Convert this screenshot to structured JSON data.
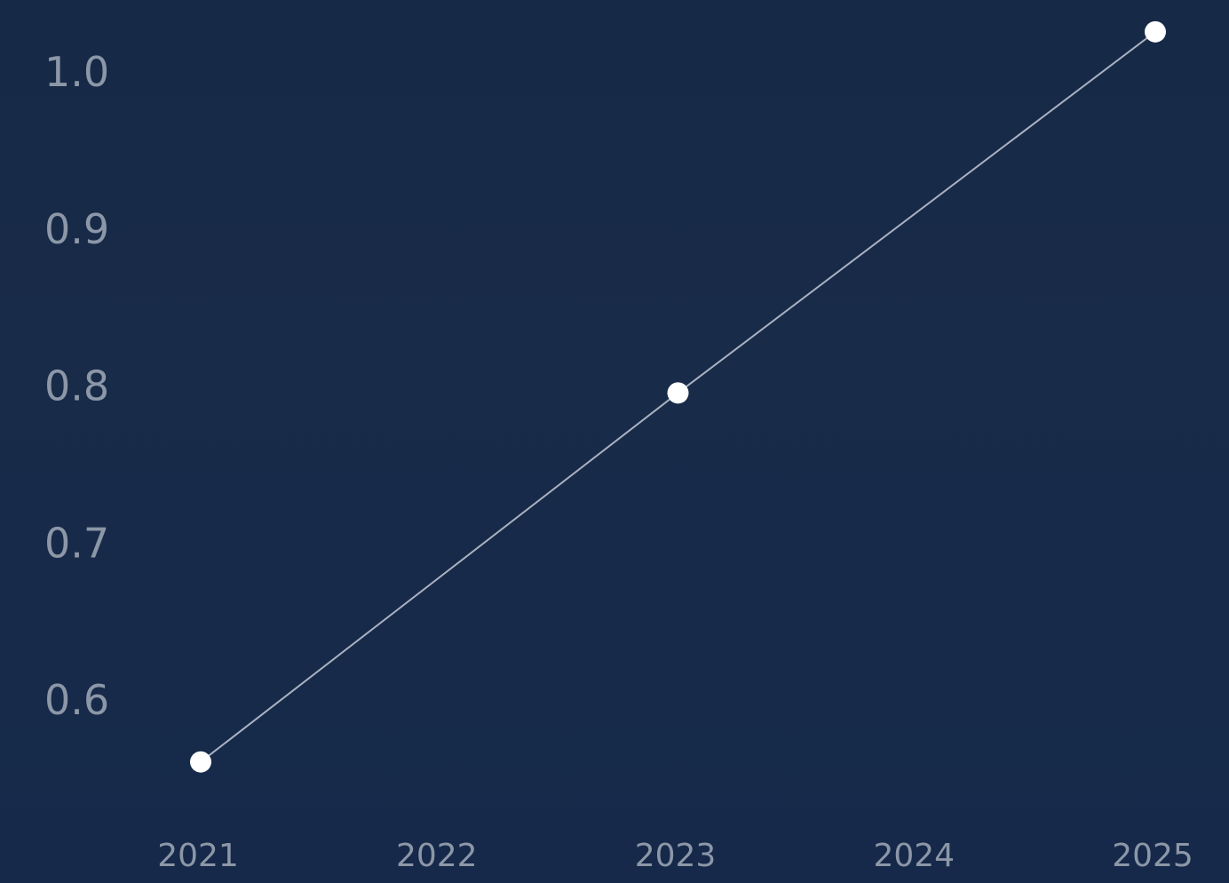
{
  "chart_data": {
    "type": "line",
    "x": [
      "2021",
      "2022",
      "2023",
      "2024",
      "2025"
    ],
    "y_ticks": [
      "1.0",
      "0.9",
      "0.8",
      "0.7",
      "0.6"
    ],
    "ylim": [
      0.6,
      1.0
    ],
    "series": [
      {
        "points": [
          {
            "x": "2021",
            "y": 0.56
          },
          {
            "x": "2023",
            "y": 0.795
          },
          {
            "x": "2025",
            "y": 1.025
          }
        ]
      }
    ],
    "grid": false,
    "title": "",
    "xlabel": "",
    "ylabel": "",
    "colors": {
      "background": "#172a47",
      "line": "#a9b2bf",
      "point": "#ffffff",
      "tick_text": "#8c97a7"
    }
  }
}
